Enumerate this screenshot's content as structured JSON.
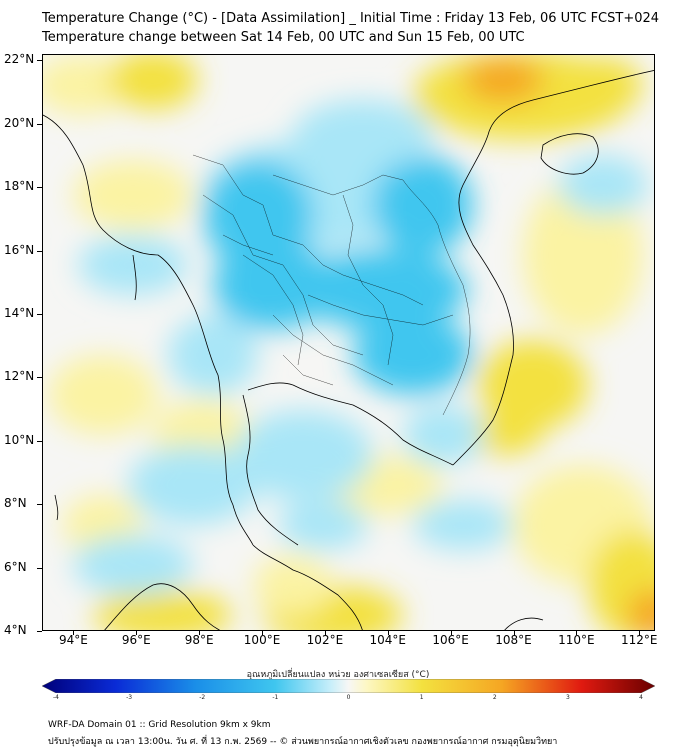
{
  "header": {
    "title_line1": "Temperature Change (°C) - [Data Assimilation] _ Initial Time : Friday 13 Feb, 06 UTC FCST+024",
    "title_line2": "Temperature change between Sat 14 Feb, 00 UTC and Sun 15 Feb, 00 UTC"
  },
  "map": {
    "lat_labels": [
      "22°N",
      "20°N",
      "18°N",
      "16°N",
      "14°N",
      "12°N",
      "10°N",
      "8°N",
      "6°N",
      "4°N"
    ],
    "lon_labels": [
      "94°E",
      "96°E",
      "98°E",
      "100°E",
      "102°E",
      "104°E",
      "106°E",
      "108°E",
      "110°E",
      "112°E"
    ],
    "lat_range": [
      4,
      22.2
    ],
    "lon_range": [
      93,
      112.5
    ],
    "colors": {
      "neutral": "#f6f6f4",
      "cool": "#3fc6ef",
      "light_cool": "#a9e6f7",
      "warm": "#f3e13f",
      "light_warm": "#fbf3a3",
      "hot": "#f5a623",
      "coast": "#000000"
    }
  },
  "colorbar": {
    "label": "อุณหภูมิเปลี่ยนแปลง หน่วย องศาเซลเซียส (°C)",
    "ticks": [
      "-4",
      "-3",
      "-2",
      "-1",
      "0",
      "1",
      "2",
      "3",
      "4"
    ],
    "range": [
      -4,
      4
    ]
  },
  "footer": {
    "line1": "WRF-DA Domain 01 :: Grid Resolution 9km x 9km",
    "line2": "ปรับปรุงข้อมูล ณ เวลา 13:00น. วัน ศ. ที่ 13 ก.พ. 2569 -- © ส่วนพยากรณ์อากาศเชิงตัวเลข กองพยากรณ์อากาศ กรมอุตุนิยมวิทยา"
  }
}
